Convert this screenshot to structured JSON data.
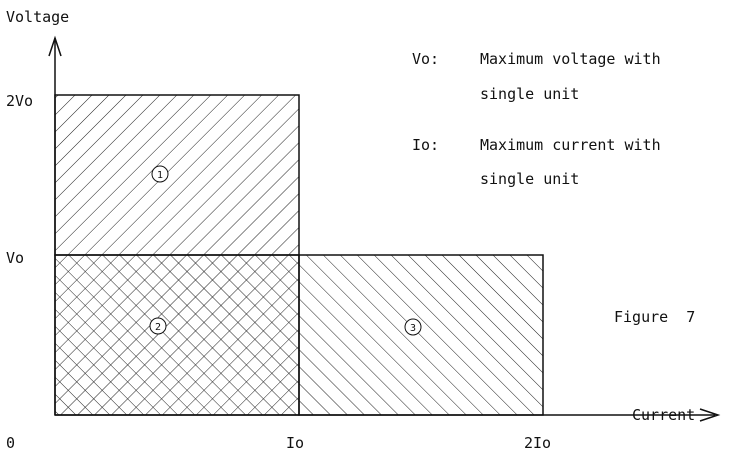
{
  "axes": {
    "y_label": "Voltage",
    "x_label": "Current",
    "origin": "0",
    "y_ticks": [
      "2Vo",
      "Vo"
    ],
    "x_ticks": [
      "Io",
      "2Io"
    ]
  },
  "regions": [
    {
      "id": "1",
      "label": "1",
      "pattern": "diagonal-up"
    },
    {
      "id": "2",
      "label": "2",
      "pattern": "crosshatch"
    },
    {
      "id": "3",
      "label": "3",
      "pattern": "diagonal-down"
    }
  ],
  "legend": [
    {
      "key": "Vo:",
      "line1": "Maximum voltage with",
      "line2": "single unit"
    },
    {
      "key": "Io:",
      "line1": "Maximum current with",
      "line2": "single unit"
    }
  ],
  "figure_label": "Figure  7"
}
